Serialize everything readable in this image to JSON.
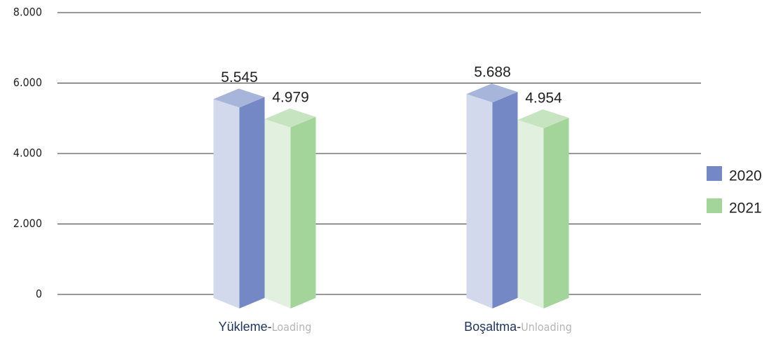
{
  "chart_data": {
    "type": "bar3d",
    "categories": [
      "Yükleme-Loading",
      "Boşaltma-Unloading"
    ],
    "series": [
      {
        "name": "2020",
        "color": "#7388c4",
        "values": [
          5545,
          5688
        ],
        "value_labels": [
          "5.545",
          "5.688"
        ]
      },
      {
        "name": "2021",
        "color": "#a3d49a",
        "values": [
          4979,
          4954
        ],
        "value_labels": [
          "4.979",
          "4.954"
        ]
      }
    ],
    "ylim": [
      0,
      8000
    ],
    "yticks": [
      0,
      {
        "value": 2000,
        "label": "2.000"
      },
      {
        "value": 4000,
        "label": "4.000"
      },
      {
        "value": 6000,
        "label": "6.000"
      },
      {
        "value": 8000,
        "label": "8.000"
      }
    ],
    "grid": true,
    "legend": "right"
  }
}
